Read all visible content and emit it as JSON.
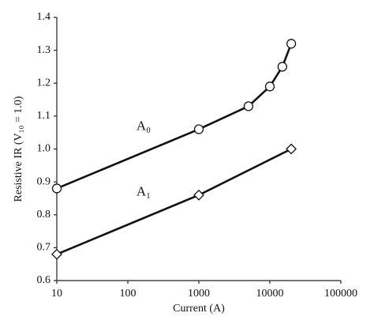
{
  "chart_data": {
    "type": "line",
    "x_label": "Current (A)",
    "y_label": "Resistive IR (V₁₀ = 1.0)",
    "xscale": "log",
    "xlim": [
      10,
      100000
    ],
    "xticks": [
      10,
      100,
      1000,
      10000,
      100000
    ],
    "ylim": [
      0.6,
      1.4
    ],
    "yticks": [
      0.6,
      0.7,
      0.8,
      0.9,
      {
        "value": 1,
        "label": "1.0"
      },
      1.1,
      1.2,
      1.3,
      1.4
    ],
    "grid": false,
    "series": [
      {
        "name": "A₀",
        "color": "#111111",
        "marker": "circle",
        "x": [
          10,
          1000,
          5000,
          10000,
          15000,
          20000
        ],
        "values": [
          0.88,
          1.06,
          1.13,
          1.19,
          1.25,
          1.32
        ]
      },
      {
        "name": "A₁",
        "color": "#111111",
        "marker": "diamond",
        "x": [
          10,
          1000,
          20000
        ],
        "values": [
          0.68,
          0.86,
          1.0
        ]
      }
    ]
  }
}
